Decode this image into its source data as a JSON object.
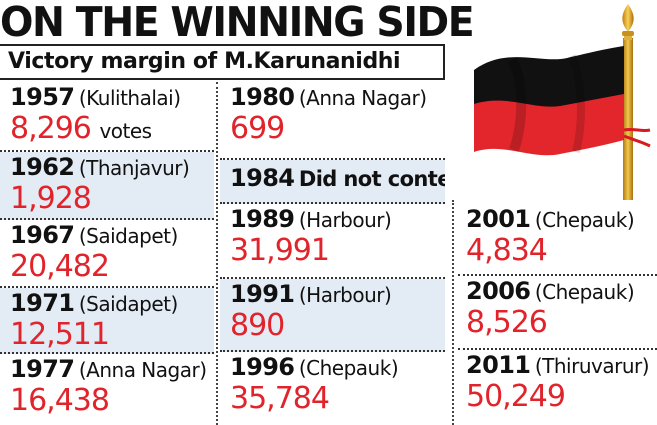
{
  "title": "ON THE WINNING SIDE",
  "subtitle": "Victory margin of M.Karunanidhi",
  "unit": "votes",
  "columns": [
    [
      {
        "year": "1957",
        "place": "(Kulithalai)",
        "value": "8,296"
      },
      {
        "year": "1962",
        "place": "(Thanjavur)",
        "value": "1,928"
      },
      {
        "year": "1967",
        "place": "(Saidapet)",
        "value": "20,482"
      },
      {
        "year": "1971",
        "place": "(Saidapet)",
        "value": "12,511"
      },
      {
        "year": "1977",
        "place": "(Anna Nagar)",
        "value": "16,438"
      }
    ],
    [
      {
        "year": "1980",
        "place": "(Anna Nagar)",
        "value": "699"
      },
      {
        "year": "1984",
        "note": "Did not contest"
      },
      {
        "year": "1989",
        "place": "(Harbour)",
        "value": "31,991"
      },
      {
        "year": "1991",
        "place": "(Harbour)",
        "value": "890"
      },
      {
        "year": "1996",
        "place": "(Chepauk)",
        "value": "35,784"
      }
    ],
    [
      {
        "year": "2001",
        "place": "(Chepauk)",
        "value": "4,834"
      },
      {
        "year": "2006",
        "place": "(Chepauk)",
        "value": "8,526"
      },
      {
        "year": "2011",
        "place": "(Thiruvarur)",
        "value": "50,249"
      }
    ]
  ],
  "colors": {
    "value_red": "#e1242b",
    "alt_row": "#e3ebf5",
    "flag_red": "#e3262b",
    "flag_black": "#111111",
    "pole_gold": "#d9a326"
  }
}
